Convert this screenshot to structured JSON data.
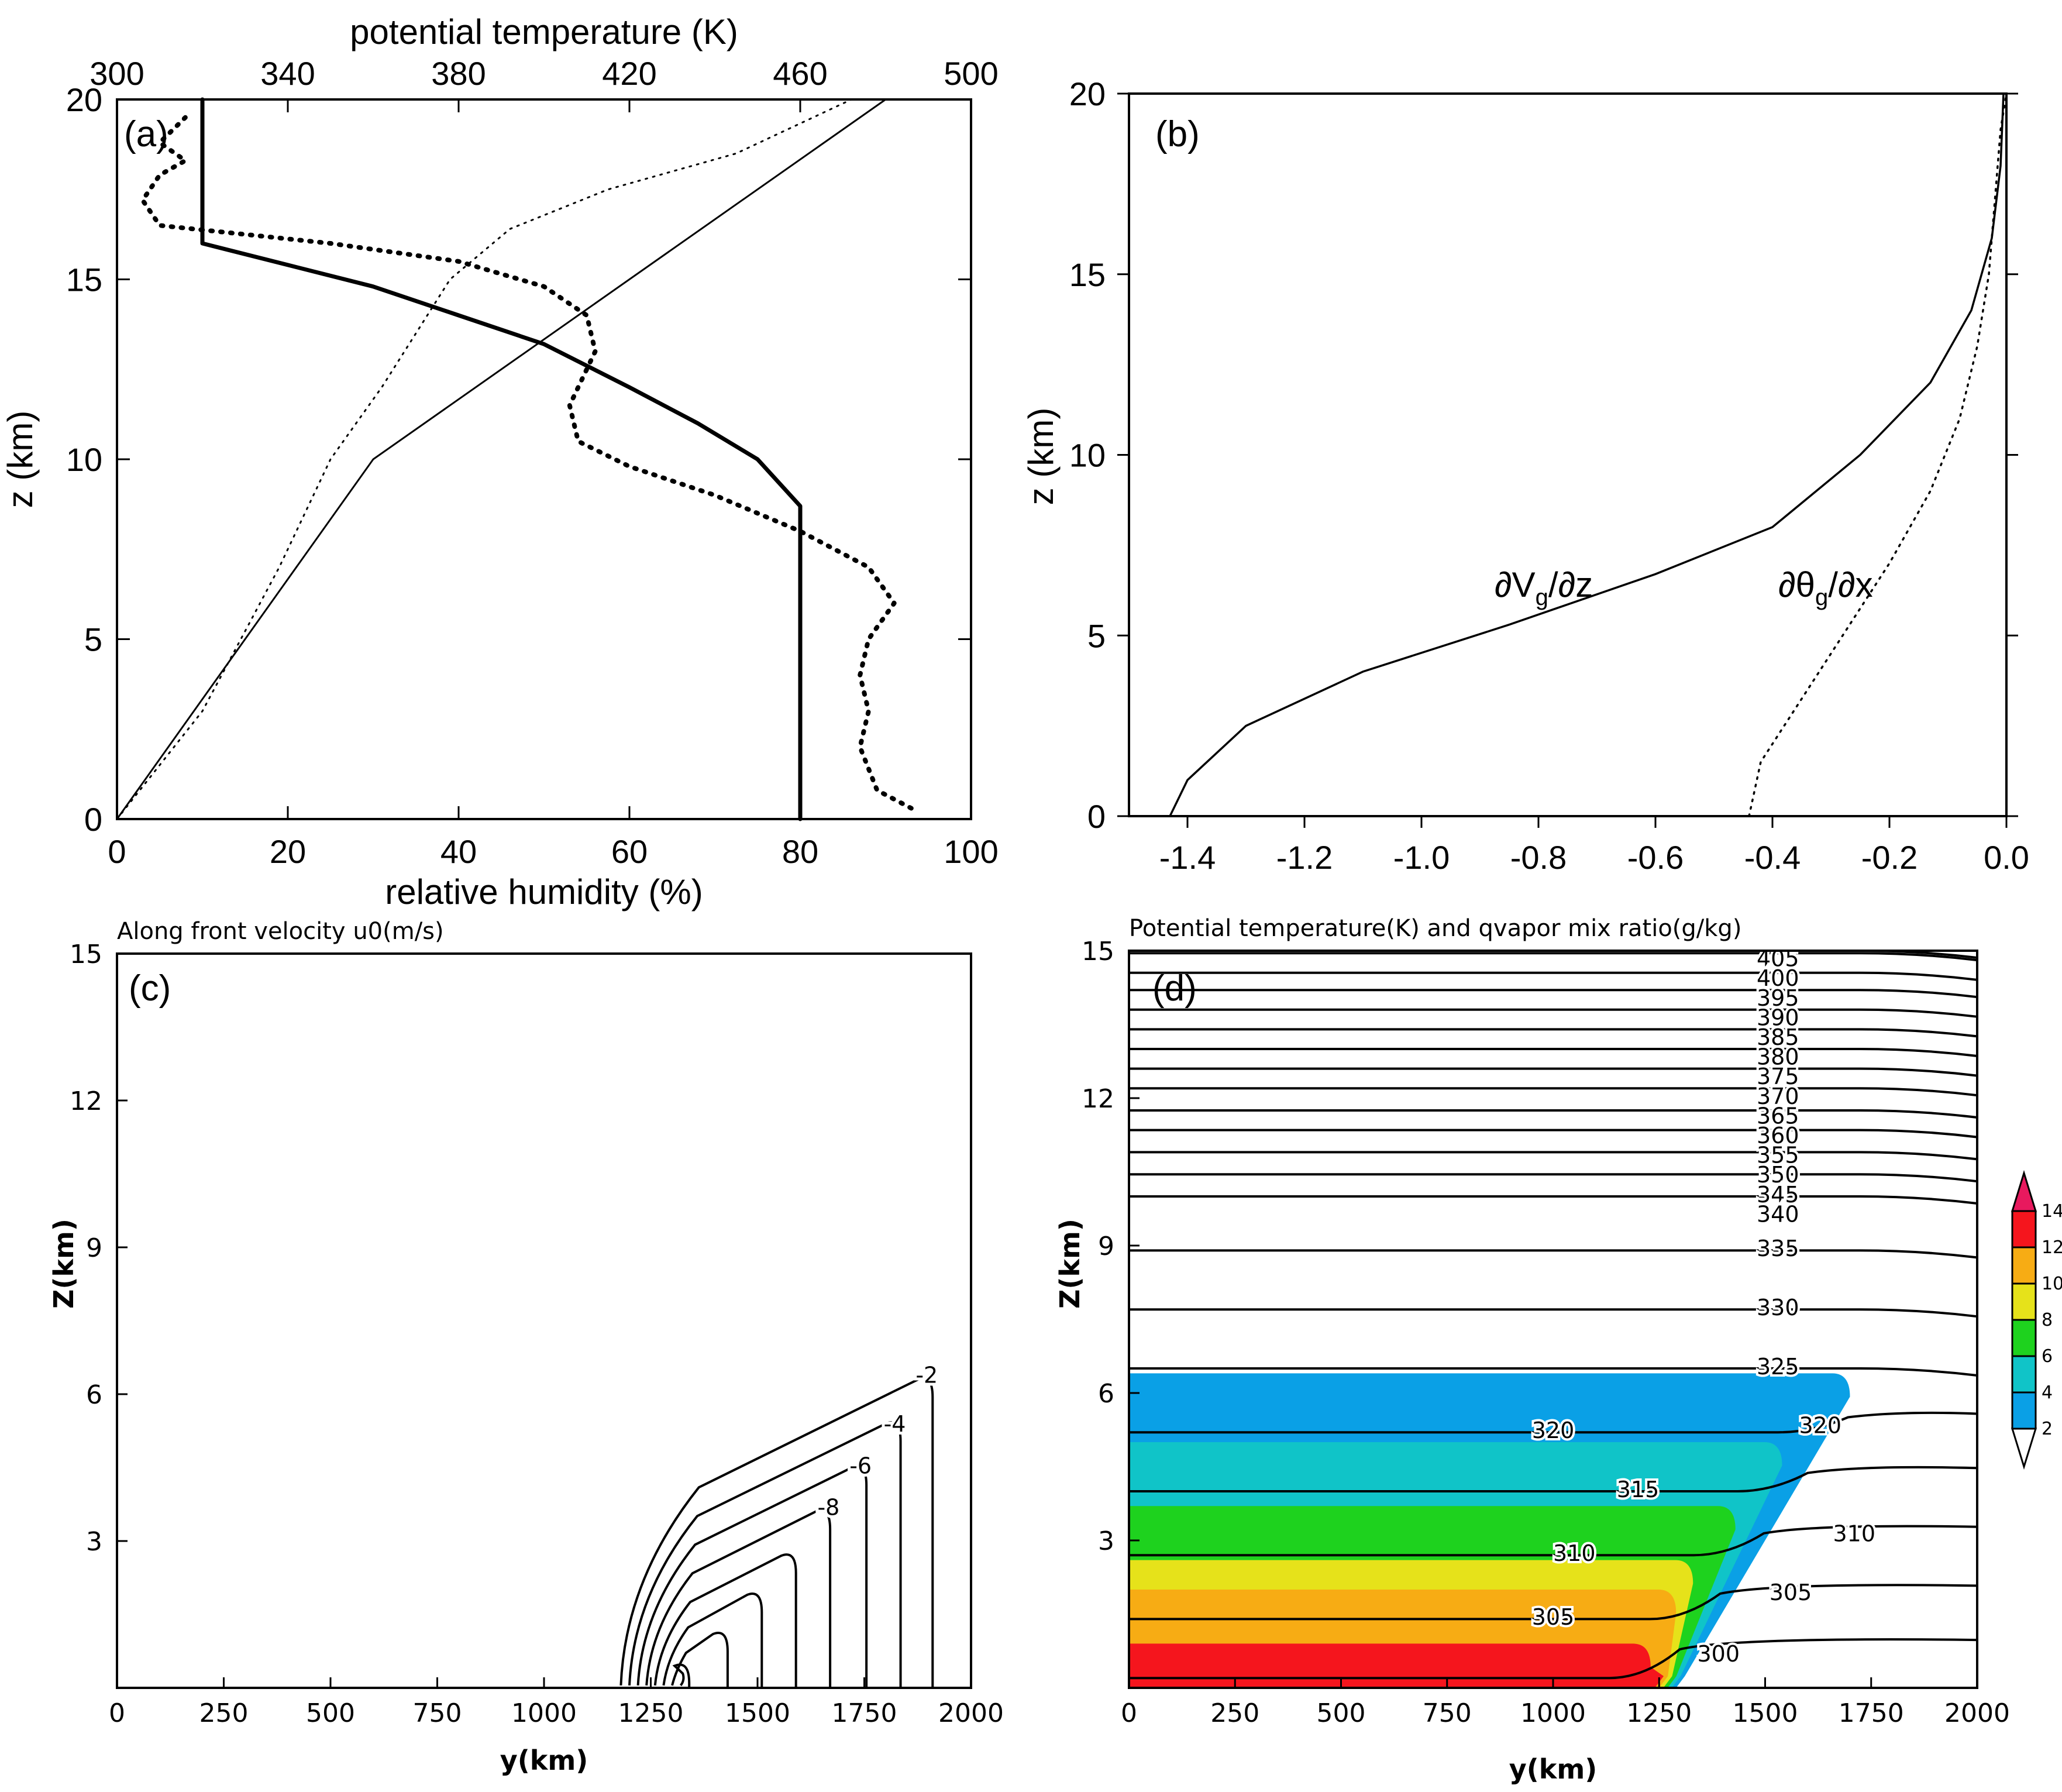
{
  "chart_data": [
    {
      "panel": "(a)",
      "type": "line",
      "x_top_label": "potential temperature (K)",
      "x_top_ticks": [
        "300",
        "340",
        "380",
        "420",
        "460",
        "500"
      ],
      "x_top_range": [
        300,
        500
      ],
      "x_bottom_label": "relative humidity (%)",
      "x_bottom_ticks": [
        "0",
        "20",
        "40",
        "60",
        "80",
        "100"
      ],
      "x_bottom_range": [
        0,
        100
      ],
      "ylabel": "z (km)",
      "y_ticks": [
        "0",
        "5",
        "10",
        "15",
        "20"
      ],
      "ylim": [
        0,
        20
      ],
      "series": [
        {
          "name": "potential temperature (thin solid)",
          "axis": "top",
          "style": "solid-thin",
          "points": [
            [
              300,
              0
            ],
            [
              360,
              10
            ],
            [
              480,
              20
            ]
          ]
        },
        {
          "name": "relative humidity (thick solid)",
          "axis": "bottom",
          "style": "solid-thick",
          "points": [
            [
              80,
              0
            ],
            [
              80,
              8.7
            ],
            [
              75,
              10
            ],
            [
              68,
              11
            ],
            [
              60,
              12
            ],
            [
              50,
              13.2
            ],
            [
              40,
              14
            ],
            [
              30,
              14.8
            ],
            [
              20,
              15.4
            ],
            [
              10,
              16
            ],
            [
              10,
              20
            ]
          ]
        },
        {
          "name": "potential temperature profile (thin dotted)",
          "axis": "top",
          "style": "dotted-thin",
          "points": [
            [
              300,
              0
            ],
            [
              320,
              3
            ],
            [
              338,
              7
            ],
            [
              350,
              10
            ],
            [
              362,
              12
            ],
            [
              378,
              15
            ],
            [
              392,
              16.4
            ],
            [
              415,
              17.5
            ],
            [
              445,
              18.5
            ],
            [
              472,
              20
            ]
          ]
        },
        {
          "name": "relative humidity profile (thick dotted)",
          "axis": "bottom",
          "style": "dotted-thick",
          "points": [
            [
              93,
              0.3
            ],
            [
              89,
              0.8
            ],
            [
              87,
              2
            ],
            [
              88,
              3
            ],
            [
              87,
              4
            ],
            [
              88,
              5
            ],
            [
              91,
              6
            ],
            [
              88,
              7
            ],
            [
              80,
              8
            ],
            [
              70,
              9
            ],
            [
              60,
              9.8
            ],
            [
              54,
              10.5
            ],
            [
              53,
              11.5
            ],
            [
              56,
              13
            ],
            [
              55,
              14
            ],
            [
              50,
              14.8
            ],
            [
              40,
              15.5
            ],
            [
              25,
              16
            ],
            [
              5,
              16.5
            ],
            [
              3,
              17.2
            ],
            [
              5,
              17.9
            ],
            [
              8,
              18.3
            ],
            [
              5,
              18.8
            ],
            [
              8,
              19.5
            ]
          ]
        }
      ]
    },
    {
      "panel": "(b)",
      "type": "line",
      "x_ticks": [
        "-1.4",
        "-1.2",
        "-1.0",
        "-0.8",
        "-0.6",
        "-0.4",
        "-0.2",
        "0.0"
      ],
      "xlim": [
        -1.5,
        0.0
      ],
      "ylabel": "z (km)",
      "y_ticks": [
        "0",
        "5",
        "10",
        "15",
        "20"
      ],
      "ylim": [
        0,
        20
      ],
      "series": [
        {
          "name": "∂Vg/∂z",
          "style": "solid",
          "points": [
            [
              -1.43,
              0
            ],
            [
              -1.4,
              1
            ],
            [
              -1.3,
              2.5
            ],
            [
              -1.1,
              4
            ],
            [
              -0.85,
              5.3
            ],
            [
              -0.6,
              6.7
            ],
            [
              -0.4,
              8
            ],
            [
              -0.25,
              10
            ],
            [
              -0.13,
              12
            ],
            [
              -0.06,
              14
            ],
            [
              -0.025,
              16
            ],
            [
              -0.01,
              18
            ],
            [
              -0.005,
              20
            ]
          ]
        },
        {
          "name": "∂θg/∂x",
          "style": "dotted",
          "points": [
            [
              -0.44,
              0
            ],
            [
              -0.42,
              1.5
            ],
            [
              -0.36,
              3
            ],
            [
              -0.28,
              5
            ],
            [
              -0.2,
              7
            ],
            [
              -0.13,
              9
            ],
            [
              -0.08,
              11
            ],
            [
              -0.05,
              13
            ],
            [
              -0.03,
              15
            ],
            [
              -0.02,
              17
            ],
            [
              -0.01,
              19
            ],
            [
              0.0,
              20
            ]
          ]
        }
      ],
      "annotations": [
        {
          "text": "∂V",
          "sub": "g",
          "rest": "/∂z"
        },
        {
          "text": "∂θ",
          "sub": "g",
          "rest": "/∂x"
        }
      ]
    },
    {
      "panel": "(c)",
      "type": "contour",
      "title": "Along front velocity u0(m/s)",
      "xlabel": "y(km)",
      "x_ticks": [
        "0",
        "250",
        "500",
        "750",
        "1000",
        "1250",
        "1500",
        "1750",
        "2000"
      ],
      "xlim": [
        0,
        2000
      ],
      "ylabel": "Z(km)",
      "y_ticks": [
        "3",
        "6",
        "9",
        "12",
        "15"
      ],
      "ylim": [
        0,
        15
      ],
      "contour_labels": [
        "-2",
        "-4",
        "-6",
        "-8"
      ],
      "contours": [
        {
          "level": -2,
          "top_y": 1910,
          "top_z": 6.3
        },
        {
          "level": -4,
          "top_y": 1835,
          "top_z": 5.4
        },
        {
          "level": -6,
          "top_y": 1755,
          "top_z": 4.5
        },
        {
          "level": -8,
          "top_y": 1670,
          "top_z": 3.6
        },
        {
          "level": -10,
          "top_y": 1590,
          "top_z": 2.7
        },
        {
          "level": -12,
          "top_y": 1510,
          "top_z": 1.9
        },
        {
          "level": -14,
          "top_y": 1430,
          "top_z": 1.1
        },
        {
          "level": -16,
          "top_y": 1340,
          "top_z": 0.45
        }
      ]
    },
    {
      "panel": "(d)",
      "type": "contour",
      "title": "Potential temperature(K) and qvapor mix ratio(g/kg)",
      "xlabel": "y(km)",
      "x_ticks": [
        "0",
        "250",
        "500",
        "750",
        "1000",
        "1250",
        "1500",
        "1750",
        "2000"
      ],
      "xlim": [
        0,
        2000
      ],
      "ylabel": "Z(km)",
      "y_ticks": [
        "3",
        "6",
        "9",
        "12",
        "15"
      ],
      "ylim": [
        0,
        15
      ],
      "theta_labels": [
        "405",
        "400",
        "395",
        "390",
        "385",
        "380",
        "375",
        "370",
        "365",
        "360",
        "355",
        "350",
        "345",
        "340",
        "335",
        "330",
        "325",
        "320",
        "320",
        "315",
        "310",
        "310",
        "305",
        "305",
        "300"
      ],
      "theta_levels": [
        {
          "value": 300,
          "z": 0.2
        },
        {
          "value": 305,
          "z": 1.4
        },
        {
          "value": 310,
          "z": 2.7
        },
        {
          "value": 315,
          "z": 4.0
        },
        {
          "value": 320,
          "z": 5.2
        },
        {
          "value": 325,
          "z": 6.5
        },
        {
          "value": 330,
          "z": 7.7
        },
        {
          "value": 335,
          "z": 8.9
        },
        {
          "value": 340,
          "z": 10.0
        },
        {
          "value": 345,
          "z": 10.45
        },
        {
          "value": 350,
          "z": 10.9
        },
        {
          "value": 355,
          "z": 11.35
        },
        {
          "value": 360,
          "z": 11.75
        },
        {
          "value": 365,
          "z": 12.2
        },
        {
          "value": 370,
          "z": 12.6
        },
        {
          "value": 375,
          "z": 13.0
        },
        {
          "value": 380,
          "z": 13.4
        },
        {
          "value": 385,
          "z": 13.8
        },
        {
          "value": 390,
          "z": 14.2
        },
        {
          "value": 395,
          "z": 14.55
        },
        {
          "value": 400,
          "z": 14.95
        },
        {
          "value": 405,
          "z": 15.0
        }
      ],
      "qvapor_fill": [
        {
          "level": "2-4",
          "color": "#0aa0e6",
          "z_top": 6.4,
          "y_edge_top": 1700
        },
        {
          "level": "4-6",
          "color": "#10c4c8",
          "z_top": 5.0,
          "y_edge_top": 1540
        },
        {
          "level": "6-8",
          "color": "#1ed21e",
          "z_top": 3.7,
          "y_edge_top": 1430
        },
        {
          "level": "8-10",
          "color": "#e6e21a",
          "z_top": 2.6,
          "y_edge_top": 1330
        },
        {
          "level": "10-12",
          "color": "#f7ac14",
          "z_top": 2.0,
          "y_edge_top": 1290
        },
        {
          "level": "12-14",
          "color": "#f5151d",
          "z_top": 0.9,
          "y_edge_top": 1230
        }
      ],
      "colorbar": {
        "ticks": [
          "2",
          "4",
          "6",
          "8",
          "10",
          "12",
          "14"
        ],
        "colors": [
          "#ffffff",
          "#0aa0e6",
          "#10c4c8",
          "#1ed21e",
          "#e6e21a",
          "#f7ac14",
          "#f5151d",
          "#e8195e"
        ]
      }
    }
  ]
}
